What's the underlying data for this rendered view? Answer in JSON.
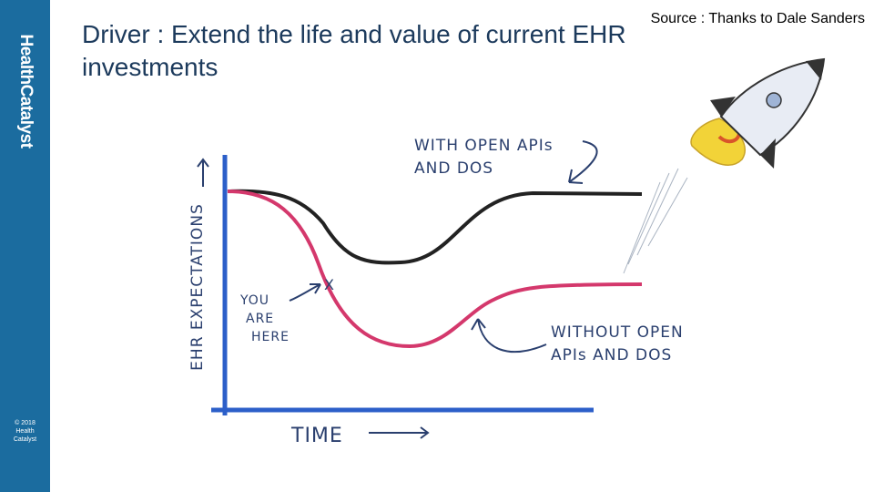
{
  "header": {
    "title": "Driver : Extend the life and value of current EHR investments",
    "source": "Source : Thanks to Dale Sanders"
  },
  "sidebar": {
    "brand": "HealthCatalyst",
    "copyright": [
      "© 2018",
      "Health",
      "Catalyst"
    ]
  },
  "sketch": {
    "y_axis_label": "EHR EXPECTATIONS",
    "x_axis_label": "TIME",
    "with_label": [
      "WITH OPEN APIs",
      "AND DOS"
    ],
    "without_label": [
      "WITHOUT OPEN",
      "APIs AND DOS"
    ],
    "here_label": [
      "YOU",
      "ARE",
      "HERE"
    ],
    "here_marker": "X"
  }
}
